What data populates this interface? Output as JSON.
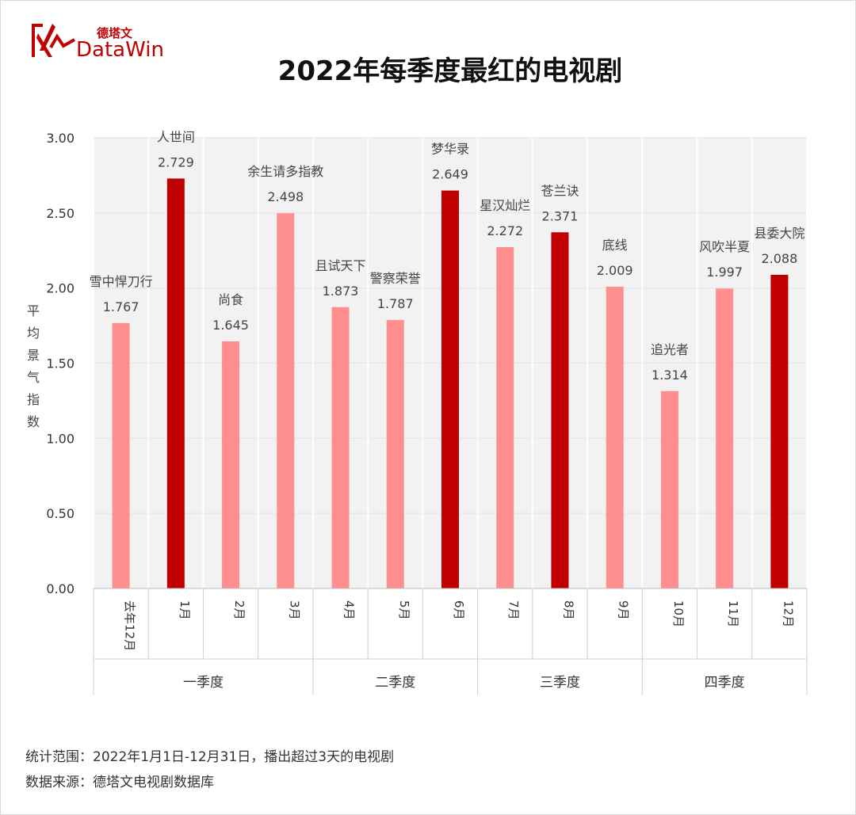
{
  "brand": {
    "cn": "德塔文",
    "en": "DataWin"
  },
  "chart_data": {
    "type": "bar",
    "title": "2022年每季度最红的电视剧",
    "ylabel": "平均景气指数",
    "xlabel": "",
    "ylim": [
      0,
      3
    ],
    "yticks": [
      "0.00",
      "0.50",
      "1.00",
      "1.50",
      "2.00",
      "2.50",
      "3.00"
    ],
    "grid": true,
    "categories": [
      "去年12月",
      "1月",
      "2月",
      "3月",
      "4月",
      "5月",
      "6月",
      "7月",
      "8月",
      "9月",
      "10月",
      "11月",
      "12月"
    ],
    "shows": [
      "雪中悍刀行",
      "人世间",
      "尚食",
      "余生请多指教",
      "且试天下",
      "警察荣誉",
      "梦华录",
      "星汉灿烂",
      "苍兰诀",
      "底线",
      "追光者",
      "风吹半夏",
      "县委大院"
    ],
    "values": [
      1.767,
      2.729,
      1.645,
      2.498,
      1.873,
      1.787,
      2.649,
      2.272,
      2.371,
      2.009,
      1.314,
      1.997,
      2.088
    ],
    "value_labels": [
      "1.767",
      "2.729",
      "1.645",
      "2.498",
      "1.873",
      "1.787",
      "2.649",
      "2.272",
      "2.371",
      "2.009",
      "1.314",
      "1.997",
      "2.088"
    ],
    "highlight": [
      false,
      true,
      false,
      false,
      false,
      false,
      true,
      false,
      true,
      false,
      false,
      false,
      true
    ],
    "quarters": [
      {
        "name": "一季度",
        "months": 4
      },
      {
        "name": "二季度",
        "months": 3
      },
      {
        "name": "三季度",
        "months": 3
      },
      {
        "name": "四季度",
        "months": 3
      }
    ],
    "colors": {
      "normal": "#ff8f8f",
      "highlight": "#c00000",
      "grid": "#e3e3e3",
      "plot_bg": "#f2f2f2"
    }
  },
  "notes": {
    "scope": "统计范围：2022年1月1日-12月31日，播出超过3天的电视剧",
    "source": "数据来源：德塔文电视剧数据库"
  }
}
